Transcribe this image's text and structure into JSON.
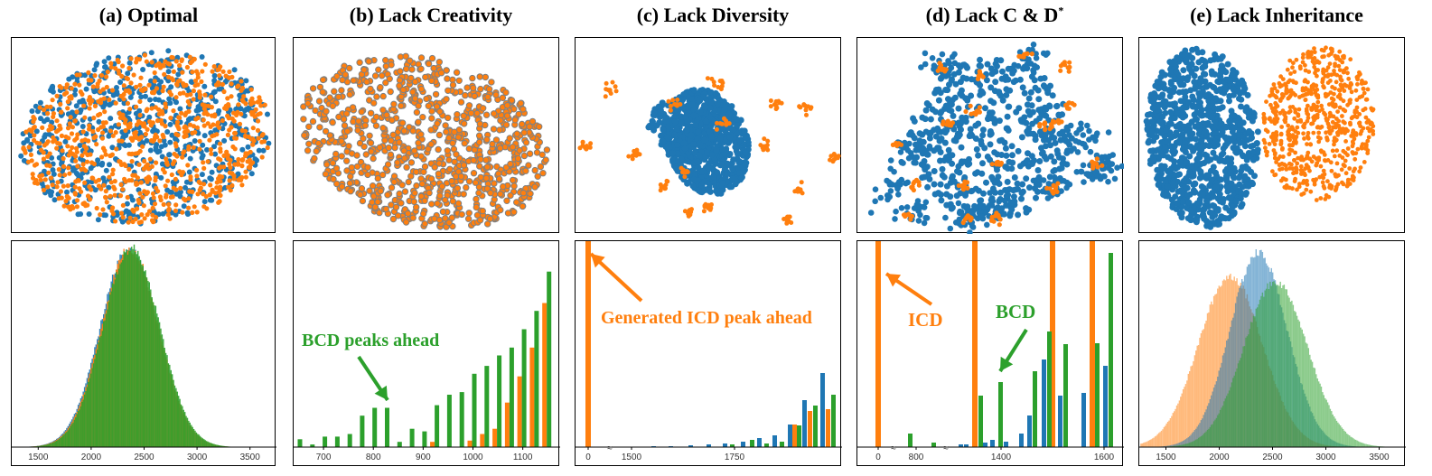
{
  "colors": {
    "blue": "#1f77b4",
    "orange": "#ff7f0e",
    "green": "#2ca02c"
  },
  "titles": {
    "a": "(a) Optimal",
    "b": "(b) Lack Creativity",
    "c": "(c) Lack Diversity",
    "d_main": "(d) Lack C & D",
    "d_sup": "*",
    "e": "(e) Lack Inheritance"
  },
  "annotations": {
    "b": "BCD peaks ahead",
    "c": "Generated ICD peak ahead",
    "d_icd": "ICD",
    "d_bcd": "BCD"
  },
  "chart_data": [
    {
      "id": "a-scatter",
      "type": "scatter",
      "title": "(a) Optimal",
      "pattern": "overlapping-single-cloud",
      "series": [
        {
          "color": "blue"
        },
        {
          "color": "orange"
        }
      ]
    },
    {
      "id": "b-scatter",
      "type": "scatter",
      "title": "(b) Lack Creativity",
      "pattern": "orange-on-grey-ring-cloud",
      "series": [
        {
          "color": "blue"
        },
        {
          "color": "orange"
        }
      ]
    },
    {
      "id": "c-scatter",
      "type": "scatter",
      "title": "(c) Lack Diversity",
      "pattern": "blue-cluster-orange-satellites",
      "series": [
        {
          "color": "blue"
        },
        {
          "color": "orange"
        }
      ]
    },
    {
      "id": "d-scatter",
      "type": "scatter",
      "title": "(d) Lack C & D*",
      "pattern": "blue-web-orange-nodes",
      "series": [
        {
          "color": "blue"
        },
        {
          "color": "orange"
        }
      ]
    },
    {
      "id": "e-scatter",
      "type": "scatter",
      "title": "(e) Lack Inheritance",
      "pattern": "separated-clusters",
      "series": [
        {
          "color": "blue"
        },
        {
          "color": "orange"
        }
      ]
    },
    {
      "id": "a-hist",
      "type": "bar",
      "xlim": [
        1250,
        3750
      ],
      "xticks": [
        "1500",
        "2000",
        "2500",
        "3000",
        "3500"
      ],
      "series": [
        {
          "color": "blue",
          "mean": 2350,
          "sd": 270
        },
        {
          "color": "orange",
          "mean": 2350,
          "sd": 270
        },
        {
          "color": "green",
          "mean": 2350,
          "sd": 270
        }
      ]
    },
    {
      "id": "b-hist",
      "type": "bar",
      "xlim": [
        640,
        1175
      ],
      "xticks": [
        "700",
        "800",
        "900",
        "1000",
        "1100"
      ],
      "x": [
        650,
        675,
        700,
        725,
        750,
        775,
        800,
        825,
        850,
        875,
        900,
        925,
        950,
        975,
        1000,
        1025,
        1050,
        1075,
        1100,
        1125,
        1150
      ],
      "series": [
        {
          "color": "orange",
          "values": [
            0,
            0,
            0,
            0,
            0,
            0,
            0,
            0,
            0,
            0,
            0,
            0.02,
            0,
            0,
            0.025,
            0.05,
            0.07,
            0.17,
            0.27,
            0.38,
            0.55
          ]
        },
        {
          "color": "green",
          "values": [
            0.03,
            0.01,
            0.04,
            0.04,
            0.05,
            0.12,
            0.15,
            0.15,
            0.02,
            0.07,
            0.06,
            0.16,
            0.2,
            0.21,
            0.28,
            0.31,
            0.35,
            0.38,
            0.45,
            0.52,
            0.67
          ]
        }
      ]
    },
    {
      "id": "c-hist",
      "type": "bar",
      "xticks": [
        "0",
        "1500",
        "1750"
      ],
      "axis_break": true,
      "series": [
        {
          "color": "orange",
          "note": "single tall peak near 0; small bars near end"
        },
        {
          "color": "blue",
          "note": "rising toward right end"
        },
        {
          "color": "green",
          "note": "rising toward right end"
        }
      ]
    },
    {
      "id": "d-hist",
      "type": "bar",
      "xticks": [
        "0",
        "800",
        "1400",
        "1600"
      ],
      "axis_break": true,
      "series": [
        {
          "color": "orange",
          "note": "four tall peaks"
        },
        {
          "color": "green",
          "note": "scattered bars, highest at right end"
        },
        {
          "color": "blue",
          "note": "small bars rising to right"
        }
      ]
    },
    {
      "id": "e-hist",
      "type": "bar",
      "xlim": [
        1250,
        3750
      ],
      "xticks": [
        "1500",
        "2000",
        "2500",
        "3000",
        "3500"
      ],
      "series": [
        {
          "color": "orange",
          "mean": 2100,
          "sd": 300
        },
        {
          "color": "blue",
          "mean": 2350,
          "sd": 270
        },
        {
          "color": "green",
          "mean": 2500,
          "sd": 300
        }
      ]
    }
  ]
}
